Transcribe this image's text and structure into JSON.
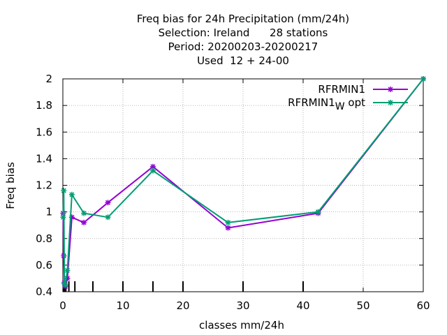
{
  "chart_data": {
    "type": "line",
    "title_lines": [
      "Freq bias  for 24h Precipitation (mm/24h)",
      "Selection: Ireland      28 stations",
      "Period: 20200203-20200217",
      "Used  12 + 24-00"
    ],
    "xlabel": "classes mm/24h",
    "ylabel": "Freq bias",
    "xlim": [
      0,
      60
    ],
    "ylim": [
      0.4,
      2
    ],
    "xticks": [
      "0",
      "10",
      "20",
      "30",
      "40",
      "50",
      "60"
    ],
    "yticks": [
      "0.4",
      "0.6",
      "0.8",
      "1",
      "1.2",
      "1.4",
      "1.6",
      "1.8",
      "2"
    ],
    "class_marks": [
      0.1,
      0.2,
      0.3,
      0.5,
      1,
      2,
      5,
      10,
      15,
      20,
      30,
      40
    ],
    "grid": true,
    "legend_position": "top-right",
    "series": [
      {
        "name": "RFRMIN1",
        "color": "#9400d3",
        "x": [
          0.05,
          0.15,
          0.25,
          0.4,
          0.75,
          1.5,
          3.5,
          7.5,
          15,
          27.5,
          42.5,
          60
        ],
        "y": [
          0.99,
          0.67,
          0.47,
          0.44,
          0.5,
          0.96,
          0.92,
          1.07,
          1.34,
          0.88,
          0.99,
          2.0
        ]
      },
      {
        "name_main": "RFRMIN1",
        "name_sub": "W",
        "name_rest": "opt",
        "color": "#009e73",
        "x": [
          0.05,
          0.15,
          0.25,
          0.4,
          0.75,
          1.5,
          3.5,
          7.5,
          15,
          27.5,
          42.5,
          60
        ],
        "y": [
          0.96,
          1.16,
          0.46,
          0.45,
          0.56,
          1.13,
          0.99,
          0.96,
          1.31,
          0.92,
          1.0,
          2.0
        ]
      }
    ]
  }
}
